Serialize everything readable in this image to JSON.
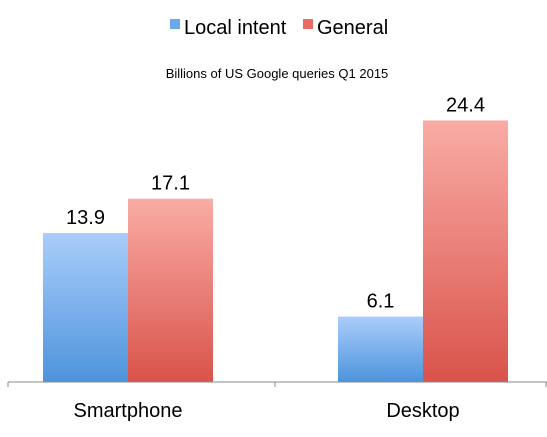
{
  "chart_data": {
    "type": "bar",
    "subtitle": "Billions of US Google queries Q1 2015",
    "categories": [
      "Smartphone",
      "Desktop"
    ],
    "series": [
      {
        "name": "Local intent",
        "values": [
          13.9,
          6.1
        ],
        "color_top": "#aacdfb",
        "color_bottom": "#4d94dc"
      },
      {
        "name": "General",
        "values": [
          17.1,
          24.4
        ],
        "color_top": "#f9aca5",
        "color_bottom": "#d9534b"
      }
    ],
    "data_labels": [
      [
        "13.9",
        "6.1"
      ],
      [
        "17.1",
        "24.4"
      ]
    ],
    "ylim": [
      0,
      25
    ],
    "grid": false,
    "legend_position": "top-center"
  }
}
